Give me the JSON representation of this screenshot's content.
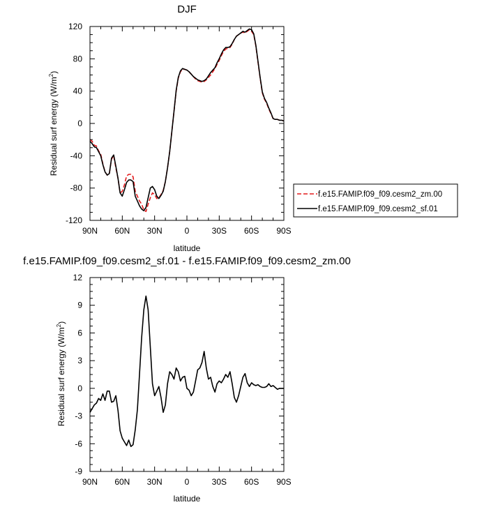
{
  "chart_data": [
    {
      "type": "line",
      "title": "DJF",
      "xlabel": "latitude",
      "ylabel": "Residual surf energy (W/m",
      "ylabel_sup": "2",
      "ylabel_close": ")",
      "xlim": [
        90,
        -90
      ],
      "ylim": [
        -120,
        120
      ],
      "xticks": [
        {
          "value": 90,
          "label": "90N"
        },
        {
          "value": 60,
          "label": "60N"
        },
        {
          "value": 30,
          "label": "30N"
        },
        {
          "value": 0,
          "label": "0"
        },
        {
          "value": -30,
          "label": "30S"
        },
        {
          "value": -60,
          "label": "60S"
        },
        {
          "value": -90,
          "label": "90S"
        }
      ],
      "yticks": [
        120,
        80,
        40,
        0,
        -40,
        -80,
        -120
      ],
      "grid": false,
      "legend": "right",
      "series": [
        {
          "name": "f.e15.FAMIP.f09_f09.cesm2_zm.00",
          "color": "#e31a1c",
          "dash": "dashed",
          "x": [
            90,
            88,
            86,
            84,
            82,
            80,
            78,
            76,
            74,
            72,
            70,
            68,
            66,
            64,
            62,
            60,
            58,
            56,
            54,
            52,
            50,
            48,
            46,
            44,
            42,
            40,
            38,
            36,
            34,
            32,
            30,
            28,
            26,
            24,
            22,
            20,
            18,
            16,
            14,
            12,
            10,
            8,
            6,
            4,
            2,
            0,
            -2,
            -4,
            -6,
            -8,
            -10,
            -12,
            -14,
            -16,
            -18,
            -20,
            -22,
            -24,
            -26,
            -28,
            -30,
            -32,
            -34,
            -36,
            -38,
            -40,
            -42,
            -44,
            -46,
            -48,
            -50,
            -52,
            -54,
            -56,
            -58,
            -60,
            -62,
            -64,
            -66,
            -68,
            -70,
            -72,
            -74,
            -76,
            -78,
            -80,
            -82,
            -84,
            -86,
            -88,
            -90
          ],
          "y": [
            -20,
            -22,
            -27,
            -28,
            -34,
            -38,
            -50,
            -60,
            -64,
            -62,
            -44,
            -40,
            -55,
            -68,
            -86,
            -84,
            -76,
            -65,
            -63,
            -63,
            -66,
            -84,
            -90,
            -96,
            -100,
            -107,
            -109,
            -100,
            -92,
            -86,
            -88,
            -93,
            -92,
            -88,
            -83,
            -72,
            -55,
            -35,
            -10,
            15,
            40,
            56,
            64,
            67,
            67,
            66,
            64,
            61,
            58,
            55,
            53,
            52,
            51,
            52,
            54,
            57,
            60,
            64,
            68,
            73,
            78,
            84,
            89,
            92,
            93,
            94,
            98,
            104,
            108,
            110,
            112,
            113,
            112,
            114,
            116,
            114,
            110,
            96,
            76,
            56,
            38,
            30,
            25,
            18,
            12,
            6,
            5,
            5,
            4,
            4,
            3
          ]
        },
        {
          "name": "f.e15.FAMIP.f09_f09.cesm2_sf.01",
          "color": "#000000",
          "dash": "solid",
          "x": [
            90,
            88,
            86,
            84,
            82,
            80,
            78,
            76,
            74,
            72,
            70,
            68,
            66,
            64,
            62,
            60,
            58,
            56,
            54,
            52,
            50,
            48,
            46,
            44,
            42,
            40,
            38,
            36,
            34,
            32,
            30,
            28,
            26,
            24,
            22,
            20,
            18,
            16,
            14,
            12,
            10,
            8,
            6,
            4,
            2,
            0,
            -2,
            -4,
            -6,
            -8,
            -10,
            -12,
            -14,
            -16,
            -18,
            -20,
            -22,
            -24,
            -26,
            -28,
            -30,
            -32,
            -34,
            -36,
            -38,
            -40,
            -42,
            -44,
            -46,
            -48,
            -50,
            -52,
            -54,
            -56,
            -58,
            -60,
            -62,
            -64,
            -66,
            -68,
            -70,
            -72,
            -74,
            -76,
            -78,
            -80,
            -82,
            -84,
            -86,
            -88,
            -90
          ],
          "y": [
            -22,
            -25,
            -29,
            -30,
            -35,
            -40,
            -51,
            -60,
            -64,
            -62,
            -43,
            -39,
            -53,
            -68,
            -86,
            -90,
            -82,
            -73,
            -70,
            -70,
            -72,
            -90,
            -96,
            -102,
            -106,
            -108,
            -104,
            -92,
            -80,
            -78,
            -82,
            -90,
            -93,
            -89,
            -84,
            -72,
            -55,
            -35,
            -10,
            15,
            41,
            57,
            65,
            68,
            67,
            66,
            64,
            61,
            58,
            56,
            54,
            53,
            52,
            53,
            55,
            59,
            63,
            66,
            69,
            75,
            80,
            86,
            91,
            94,
            94,
            95,
            99,
            104,
            108,
            110,
            112,
            114,
            113,
            115,
            117,
            116,
            111,
            97,
            77,
            57,
            39,
            31,
            26,
            19,
            13,
            6,
            5,
            5,
            4,
            4,
            3
          ]
        }
      ]
    },
    {
      "type": "line",
      "title": "f.e15.FAMIP.f09_f09.cesm2_sf.01 - f.e15.FAMIP.f09_f09.cesm2_zm.00",
      "xlabel": "latitude",
      "ylabel": "Residual surf energy (W/m",
      "ylabel_sup": "2",
      "ylabel_close": ")",
      "xlim": [
        90,
        -90
      ],
      "ylim": [
        -9,
        12
      ],
      "xticks": [
        {
          "value": 90,
          "label": "90N"
        },
        {
          "value": 60,
          "label": "60N"
        },
        {
          "value": 30,
          "label": "30N"
        },
        {
          "value": 0,
          "label": "0"
        },
        {
          "value": -30,
          "label": "30S"
        },
        {
          "value": -60,
          "label": "60S"
        },
        {
          "value": -90,
          "label": "90S"
        }
      ],
      "yticks": [
        12,
        9,
        6,
        3,
        0,
        -3,
        -6,
        -9
      ],
      "grid": false,
      "series": [
        {
          "color": "#000000",
          "dash": "solid",
          "x": [
            90,
            88,
            86,
            84,
            82,
            80,
            78,
            76,
            74,
            72,
            70,
            68,
            66,
            64,
            62,
            60,
            58,
            56,
            54,
            52,
            50,
            48,
            46,
            44,
            42,
            40,
            38,
            36,
            34,
            32,
            30,
            28,
            26,
            24,
            22,
            20,
            18,
            16,
            14,
            12,
            10,
            8,
            6,
            4,
            2,
            0,
            -2,
            -4,
            -6,
            -8,
            -10,
            -12,
            -14,
            -16,
            -18,
            -20,
            -22,
            -24,
            -26,
            -28,
            -30,
            -32,
            -34,
            -36,
            -38,
            -40,
            -42,
            -44,
            -46,
            -48,
            -50,
            -52,
            -54,
            -56,
            -58,
            -60,
            -62,
            -64,
            -66,
            -68,
            -70,
            -72,
            -74,
            -76,
            -78,
            -80,
            -82,
            -84,
            -86,
            -88,
            -90
          ],
          "y": [
            -2.6,
            -2.2,
            -1.8,
            -1.6,
            -1.1,
            -1.3,
            -0.6,
            -1.3,
            -0.3,
            -0.3,
            -1.5,
            -1.4,
            -0.8,
            -2.4,
            -4.6,
            -5.4,
            -5.8,
            -6.2,
            -5.6,
            -6.3,
            -6.1,
            -4.5,
            -2.3,
            1.5,
            5.5,
            8.5,
            10.0,
            8.5,
            4.5,
            0.5,
            -0.8,
            -0.3,
            0.2,
            -1.0,
            -2.6,
            -1.8,
            0.5,
            1.8,
            1.5,
            1.0,
            2.2,
            1.8,
            0.8,
            1.2,
            1.3,
            0.0,
            -0.2,
            -0.8,
            -0.4,
            0.8,
            2.0,
            2.2,
            2.8,
            4.0,
            2.2,
            1.0,
            1.2,
            0.2,
            -0.4,
            0.5,
            0.8,
            0.6,
            1.0,
            1.5,
            1.2,
            1.8,
            0.5,
            -1.0,
            -1.5,
            -0.8,
            0.2,
            1.2,
            1.6,
            0.6,
            0.2,
            0.6,
            0.4,
            0.3,
            0.4,
            0.2,
            0.1,
            0.1,
            0.2,
            0.5,
            0.2,
            0.3,
            0.1,
            -0.1,
            0.0,
            0.0,
            0.0
          ]
        }
      ]
    }
  ]
}
